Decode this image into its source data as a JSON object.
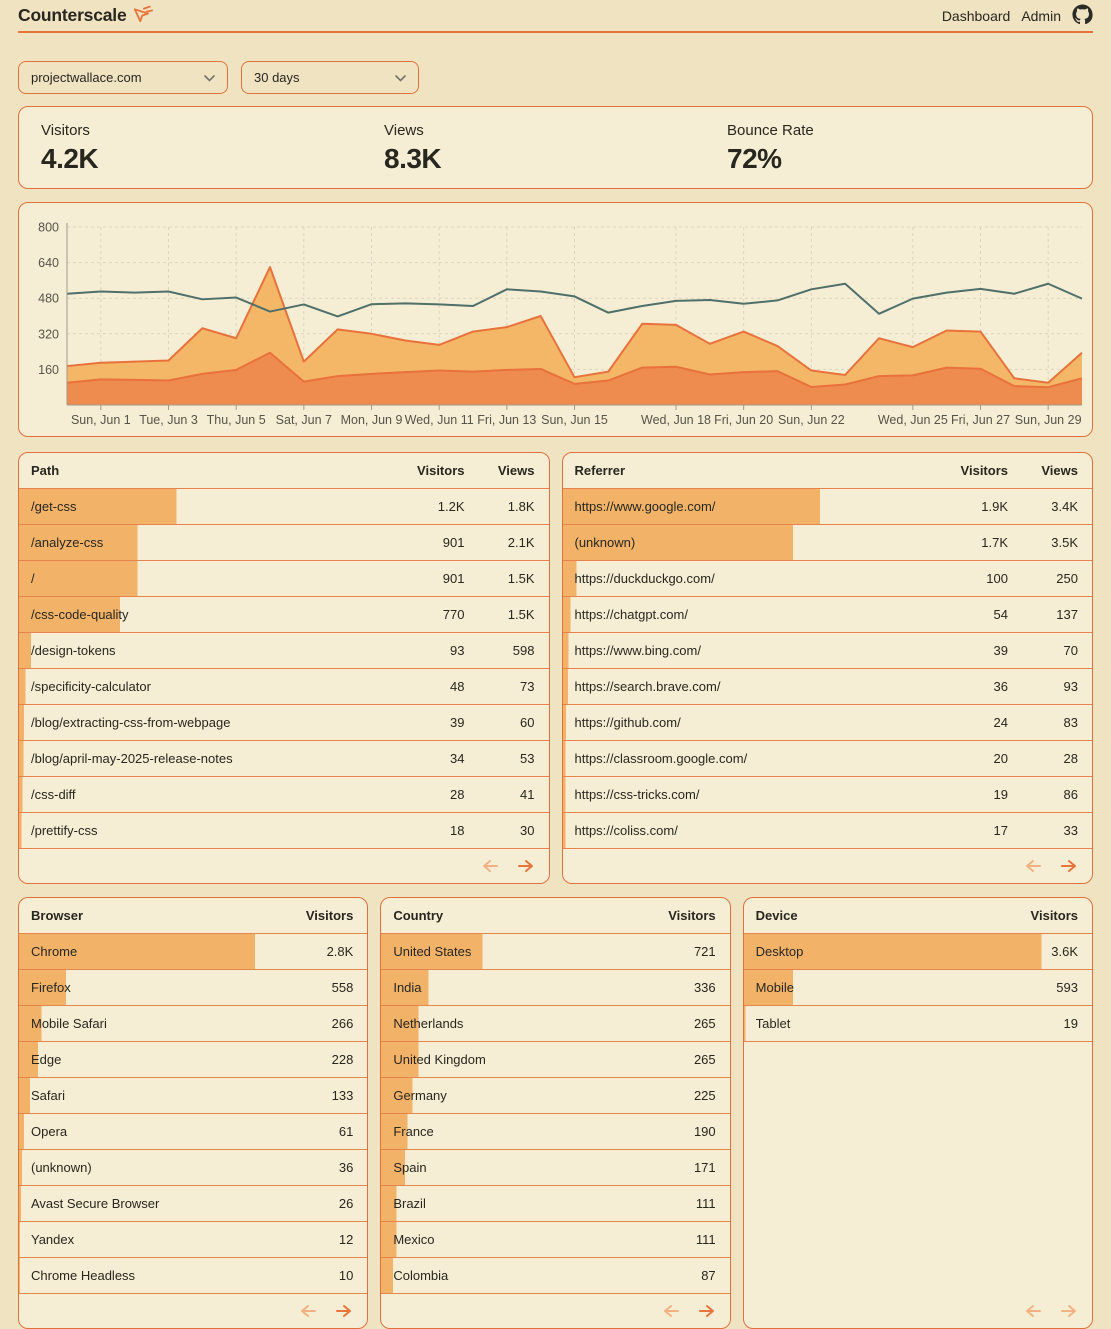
{
  "header": {
    "logo_text": "Counterscale",
    "nav_dashboard": "Dashboard",
    "nav_admin": "Admin"
  },
  "filters": {
    "site": "projectwallace.com",
    "range": "30 days"
  },
  "stats": [
    {
      "label": "Visitors",
      "value": "4.2K"
    },
    {
      "label": "Views",
      "value": "8.3K"
    },
    {
      "label": "Bounce Rate",
      "value": "72%"
    }
  ],
  "chart_data": {
    "type": "area",
    "title": "",
    "xlabel": "",
    "ylabel": "",
    "ylim": [
      0,
      800
    ],
    "y_ticks": [
      160,
      320,
      480,
      640,
      800
    ],
    "grid": "dashed",
    "n_points": 31,
    "x_labels": [
      {
        "label": "Sun, Jun 1",
        "day": 1
      },
      {
        "label": "Tue, Jun 3",
        "day": 3
      },
      {
        "label": "Thu, Jun 5",
        "day": 5
      },
      {
        "label": "Sat, Jun 7",
        "day": 7
      },
      {
        "label": "Mon, Jun 9",
        "day": 9
      },
      {
        "label": "Wed, Jun 11",
        "day": 11
      },
      {
        "label": "Fri, Jun 13",
        "day": 13
      },
      {
        "label": "Sun, Jun 15",
        "day": 15
      },
      {
        "label": "Wed, Jun 18",
        "day": 18
      },
      {
        "label": "Fri, Jun 20",
        "day": 20
      },
      {
        "label": "Sun, Jun 22",
        "day": 22
      },
      {
        "label": "Wed, Jun 25",
        "day": 25
      },
      {
        "label": "Fri, Jun 27",
        "day": 27
      },
      {
        "label": "Sun, Jun 29",
        "day": 29
      }
    ],
    "series": [
      {
        "name": "views-area",
        "color": "#f4b768",
        "stroke": "#e8713c",
        "values": [
          175,
          190,
          195,
          200,
          345,
          300,
          620,
          195,
          340,
          320,
          290,
          270,
          330,
          350,
          400,
          125,
          150,
          365,
          360,
          275,
          330,
          265,
          155,
          135,
          300,
          260,
          335,
          330,
          120,
          100,
          235
        ]
      },
      {
        "name": "visitors-area",
        "color": "#ee8c50",
        "stroke": "#e8713c",
        "values": [
          100,
          115,
          113,
          110,
          140,
          158,
          235,
          105,
          130,
          140,
          148,
          155,
          150,
          158,
          162,
          95,
          110,
          168,
          172,
          137,
          148,
          152,
          81,
          92,
          130,
          133,
          168,
          163,
          85,
          80,
          120
        ]
      },
      {
        "name": "trend-line",
        "color": "#4e6f6a",
        "values": [
          500,
          510,
          505,
          510,
          475,
          483,
          420,
          452,
          398,
          453,
          457,
          452,
          445,
          520,
          510,
          488,
          415,
          445,
          468,
          472,
          455,
          470,
          520,
          545,
          410,
          478,
          505,
          522,
          500,
          545,
          478
        ]
      }
    ]
  },
  "tables": {
    "path": {
      "title": "Path",
      "columns": [
        "Visitors",
        "Views"
      ],
      "prev_enabled": false,
      "next_enabled": true,
      "rows": [
        {
          "label": "/get-css",
          "raw": 1200,
          "values": [
            "1.2K",
            "1.8K"
          ]
        },
        {
          "label": "/analyze-css",
          "raw": 901,
          "values": [
            "901",
            "2.1K"
          ]
        },
        {
          "label": "/",
          "raw": 901,
          "values": [
            "901",
            "1.5K"
          ]
        },
        {
          "label": "/css-code-quality",
          "raw": 770,
          "values": [
            "770",
            "1.5K"
          ]
        },
        {
          "label": "/design-tokens",
          "raw": 93,
          "values": [
            "93",
            "598"
          ]
        },
        {
          "label": "/specificity-calculator",
          "raw": 48,
          "values": [
            "48",
            "73"
          ]
        },
        {
          "label": "/blog/extracting-css-from-webpage",
          "raw": 39,
          "values": [
            "39",
            "60"
          ]
        },
        {
          "label": "/blog/april-may-2025-release-notes",
          "raw": 34,
          "values": [
            "34",
            "53"
          ]
        },
        {
          "label": "/css-diff",
          "raw": 28,
          "values": [
            "28",
            "41"
          ]
        },
        {
          "label": "/prettify-css",
          "raw": 18,
          "values": [
            "18",
            "30"
          ]
        }
      ]
    },
    "referrer": {
      "title": "Referrer",
      "columns": [
        "Visitors",
        "Views"
      ],
      "prev_enabled": false,
      "next_enabled": true,
      "rows": [
        {
          "label": "https://www.google.com/",
          "raw": 1900,
          "values": [
            "1.9K",
            "3.4K"
          ]
        },
        {
          "label": "(unknown)",
          "raw": 1700,
          "values": [
            "1.7K",
            "3.5K"
          ]
        },
        {
          "label": "https://duckduckgo.com/",
          "raw": 100,
          "values": [
            "100",
            "250"
          ]
        },
        {
          "label": "https://chatgpt.com/",
          "raw": 54,
          "values": [
            "54",
            "137"
          ]
        },
        {
          "label": "https://www.bing.com/",
          "raw": 39,
          "values": [
            "39",
            "70"
          ]
        },
        {
          "label": "https://search.brave.com/",
          "raw": 36,
          "values": [
            "36",
            "93"
          ]
        },
        {
          "label": "https://github.com/",
          "raw": 24,
          "values": [
            "24",
            "83"
          ]
        },
        {
          "label": "https://classroom.google.com/",
          "raw": 20,
          "values": [
            "20",
            "28"
          ]
        },
        {
          "label": "https://css-tricks.com/",
          "raw": 19,
          "values": [
            "19",
            "86"
          ]
        },
        {
          "label": "https://coliss.com/",
          "raw": 17,
          "values": [
            "17",
            "33"
          ]
        }
      ]
    },
    "browser": {
      "title": "Browser",
      "columns": [
        "Visitors"
      ],
      "prev_enabled": false,
      "next_enabled": true,
      "rows": [
        {
          "label": "Chrome",
          "raw": 2800,
          "values": [
            "2.8K"
          ]
        },
        {
          "label": "Firefox",
          "raw": 558,
          "values": [
            "558"
          ]
        },
        {
          "label": "Mobile Safari",
          "raw": 266,
          "values": [
            "266"
          ]
        },
        {
          "label": "Edge",
          "raw": 228,
          "values": [
            "228"
          ]
        },
        {
          "label": "Safari",
          "raw": 133,
          "values": [
            "133"
          ]
        },
        {
          "label": "Opera",
          "raw": 61,
          "values": [
            "61"
          ]
        },
        {
          "label": "(unknown)",
          "raw": 36,
          "values": [
            "36"
          ]
        },
        {
          "label": "Avast Secure Browser",
          "raw": 26,
          "values": [
            "26"
          ]
        },
        {
          "label": "Yandex",
          "raw": 12,
          "values": [
            "12"
          ]
        },
        {
          "label": "Chrome Headless",
          "raw": 10,
          "values": [
            "10"
          ]
        }
      ]
    },
    "country": {
      "title": "Country",
      "columns": [
        "Visitors"
      ],
      "prev_enabled": false,
      "next_enabled": true,
      "rows": [
        {
          "label": "United States",
          "raw": 721,
          "values": [
            "721"
          ]
        },
        {
          "label": "India",
          "raw": 336,
          "values": [
            "336"
          ]
        },
        {
          "label": "Netherlands",
          "raw": 265,
          "values": [
            "265"
          ]
        },
        {
          "label": "United Kingdom",
          "raw": 265,
          "values": [
            "265"
          ]
        },
        {
          "label": "Germany",
          "raw": 225,
          "values": [
            "225"
          ]
        },
        {
          "label": "France",
          "raw": 190,
          "values": [
            "190"
          ]
        },
        {
          "label": "Spain",
          "raw": 171,
          "values": [
            "171"
          ]
        },
        {
          "label": "Brazil",
          "raw": 111,
          "values": [
            "111"
          ]
        },
        {
          "label": "Mexico",
          "raw": 111,
          "values": [
            "111"
          ]
        },
        {
          "label": "Colombia",
          "raw": 87,
          "values": [
            "87"
          ]
        }
      ]
    },
    "device": {
      "title": "Device",
      "columns": [
        "Visitors"
      ],
      "prev_enabled": false,
      "next_enabled": false,
      "rows": [
        {
          "label": "Desktop",
          "raw": 3600,
          "values": [
            "3.6K"
          ]
        },
        {
          "label": "Mobile",
          "raw": 593,
          "values": [
            "593"
          ]
        },
        {
          "label": "Tablet",
          "raw": 19,
          "values": [
            "19"
          ]
        }
      ]
    }
  },
  "colors": {
    "page_bg": "#f0e3c1",
    "card_bg": "#f6eed4",
    "border_orange": "#e0713c",
    "accent_orange": "#e8743c",
    "bar_fill": "#f2b369",
    "area_light": "#f4b768",
    "area_dark": "#ee8c50",
    "area_stroke": "#e8713c",
    "line_teal": "#4e6f6a",
    "axis": "#a19a87",
    "grid": "#dcd4bd",
    "text_muted": "#55544a",
    "separator": "#e5854e",
    "arrow_disabled": "#f2b183"
  }
}
